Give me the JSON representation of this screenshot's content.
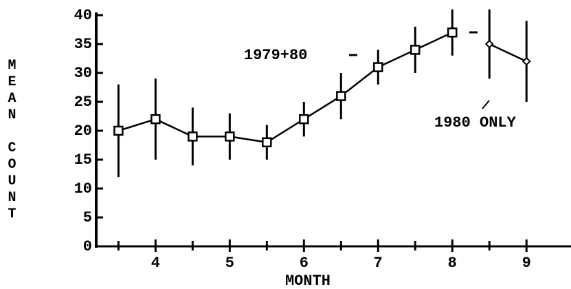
{
  "chart_data": {
    "type": "line",
    "x_label": "MONTH",
    "y_label": "MEAN COUNT",
    "xlim": [
      3.2,
      9.6
    ],
    "ylim": [
      0,
      40
    ],
    "xticks": [
      4,
      5,
      6,
      7,
      8,
      9
    ],
    "xminorticks": [
      3.5,
      4.5,
      5.5,
      6.5,
      7.5,
      8.5
    ],
    "yticks": [
      0,
      5,
      10,
      15,
      20,
      25,
      30,
      35,
      40
    ],
    "series": [
      {
        "name": "1979+80",
        "color": "#000000",
        "marker": "square",
        "x": [
          3.5,
          4,
          4.5,
          5,
          5.5,
          6,
          6.5,
          7,
          7.5,
          8
        ],
        "values": [
          20,
          22,
          19,
          19,
          18,
          22,
          26,
          31,
          34,
          37
        ],
        "errors": [
          8,
          7,
          5,
          4,
          3,
          3,
          4,
          3,
          4,
          4
        ]
      },
      {
        "name": "1980 ONLY",
        "color": "#000000",
        "marker": "diamond",
        "x": [
          8.5,
          9
        ],
        "values": [
          35,
          32
        ],
        "errors": [
          6,
          7
        ]
      }
    ]
  }
}
